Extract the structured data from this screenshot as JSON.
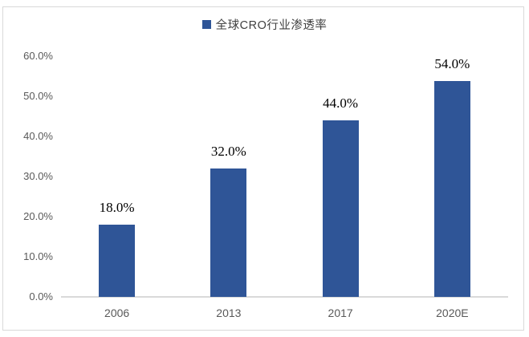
{
  "frame": {
    "border_color": "#d9d9d9",
    "background": "#ffffff"
  },
  "legend": {
    "label": "全球CRO行业渗透率",
    "marker_color": "#2f5597"
  },
  "chart_data": {
    "type": "bar",
    "title": "",
    "series_name": "全球CRO行业渗透率",
    "categories": [
      "2006",
      "2013",
      "2017",
      "2020E"
    ],
    "values": [
      18.0,
      32.0,
      44.0,
      54.0
    ],
    "data_labels": [
      "18.0%",
      "32.0%",
      "44.0%",
      "54.0%"
    ],
    "bar_color": "#2f5597",
    "ylim": [
      0,
      60
    ],
    "yticks": [
      {
        "label": "60.0%",
        "value": 60
      },
      {
        "label": "50.0%",
        "value": 50
      },
      {
        "label": "40.0%",
        "value": 40
      },
      {
        "label": "30.0%",
        "value": 30
      },
      {
        "label": "20.0%",
        "value": 20
      },
      {
        "label": "10.0%",
        "value": 10
      },
      {
        "label": "0.0%",
        "value": 0
      }
    ],
    "grid": false,
    "legend_position": "top-center",
    "axis_color": "#d9d9d9",
    "tick_label_color": "#595959",
    "data_label_color": "#000000"
  }
}
